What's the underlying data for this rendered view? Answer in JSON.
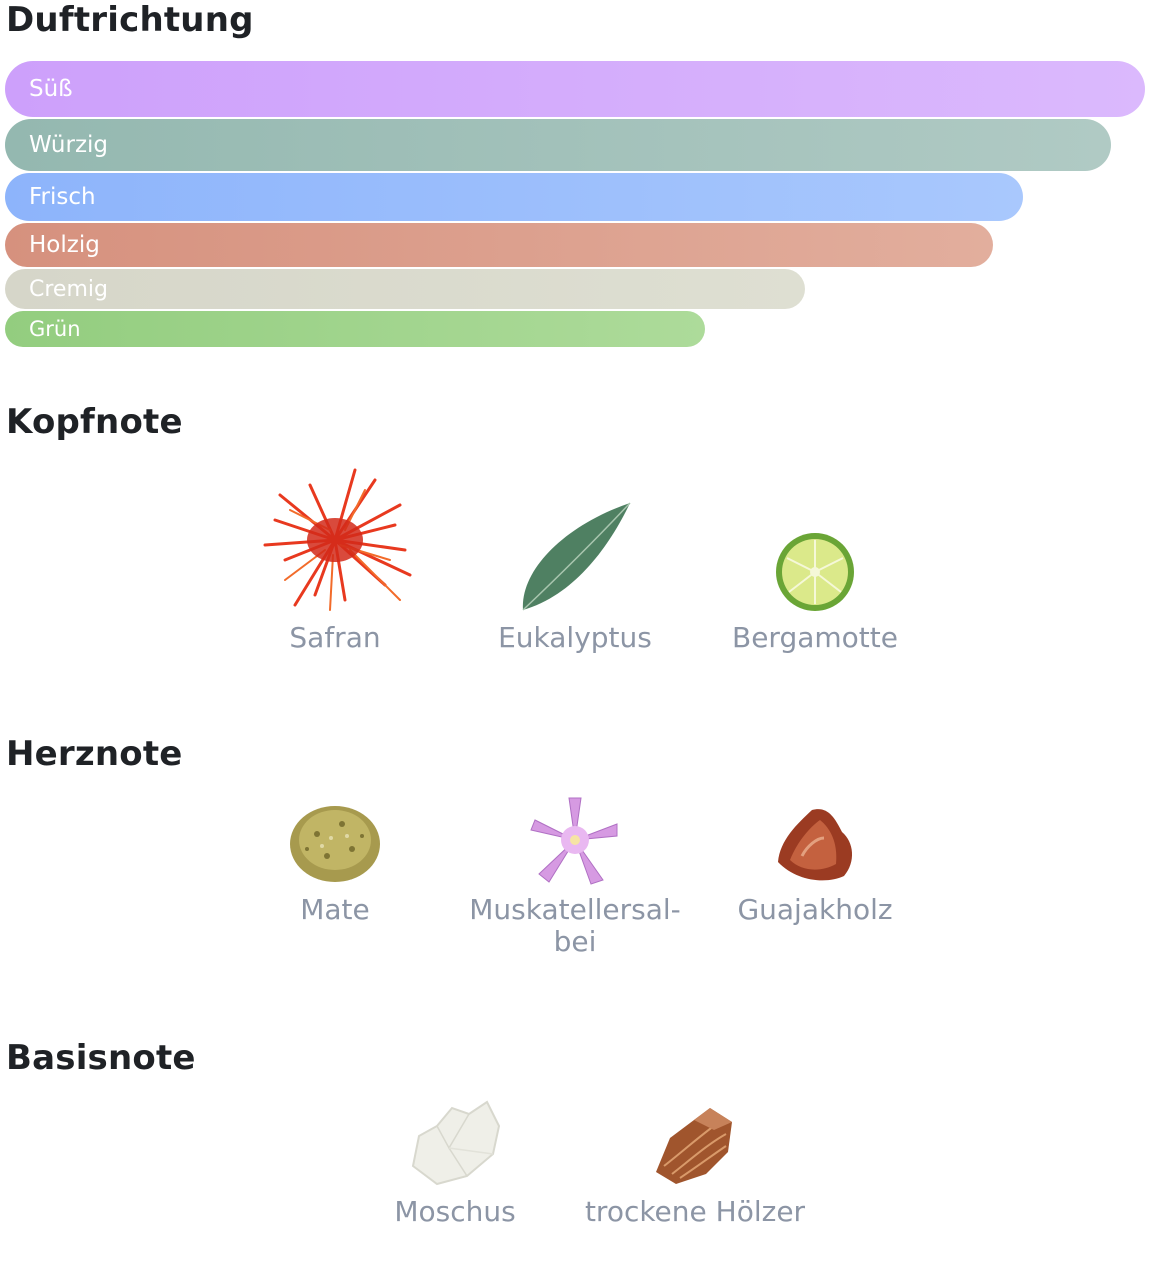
{
  "sections": {
    "duftrichtung": "Duftrichtung",
    "kopfnote": "Kopfnote",
    "herznote": "Herznote",
    "basisnote": "Basisnote"
  },
  "accords": [
    {
      "label": "Süß",
      "strength": 1.0,
      "color": "#cda0fb"
    },
    {
      "label": "Würzig",
      "strength": 0.97,
      "color": "#94b8b0"
    },
    {
      "label": "Frisch",
      "strength": 0.89,
      "color": "#8db4fb"
    },
    {
      "label": "Holzig",
      "strength": 0.87,
      "color": "#d6917e"
    },
    {
      "label": "Cremig",
      "strength": 0.7,
      "color": "#d6d6c9"
    },
    {
      "label": "Grün",
      "strength": 0.61,
      "color": "#93cd7f"
    }
  ],
  "kopfnote": [
    {
      "label": "Safran",
      "icon": "saffron-icon"
    },
    {
      "label": "Eukalyptus",
      "icon": "eucalyptus-leaf-icon"
    },
    {
      "label": "Bergamotte",
      "icon": "bergamot-icon"
    }
  ],
  "herznote": [
    {
      "label": "Mate",
      "icon": "mate-icon"
    },
    {
      "label": "Muskatellersal-",
      "label2": "bei",
      "icon": "clary-sage-flower-icon"
    },
    {
      "label": "Guajakholz",
      "icon": "guaiac-wood-icon"
    }
  ],
  "basisnote": [
    {
      "label": "Moschus",
      "icon": "musk-crystal-icon"
    },
    {
      "label": "trockene Hölzer",
      "icon": "dry-wood-icon"
    }
  ]
}
